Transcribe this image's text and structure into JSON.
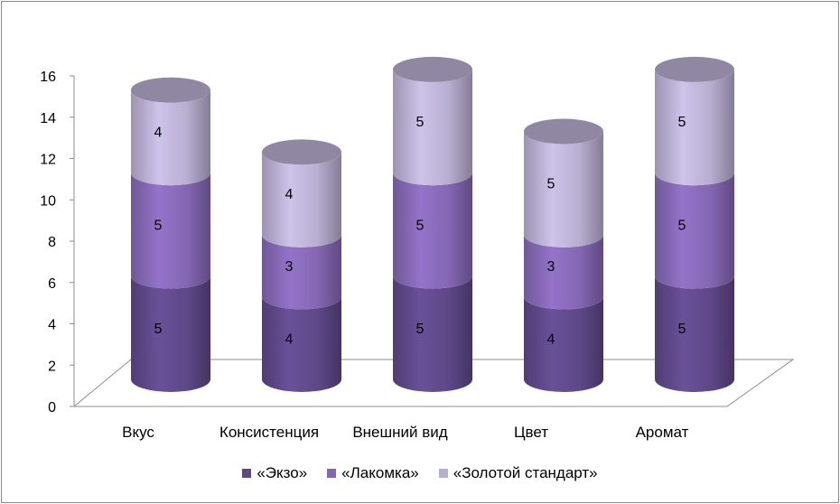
{
  "chart_data": {
    "type": "bar",
    "stacked": true,
    "style": "3d-cylinder",
    "categories": [
      "Вкус",
      "Консистенция",
      "Внешний вид",
      "Цвет",
      "Аромат"
    ],
    "series": [
      {
        "name": "«Экзо»",
        "values": [
          5,
          4,
          5,
          4,
          5
        ],
        "color": "#5e4888"
      },
      {
        "name": "«Лакомка»",
        "values": [
          5,
          3,
          5,
          3,
          5
        ],
        "color": "#8467b3"
      },
      {
        "name": "«Золотой стандарт»",
        "values": [
          4,
          4,
          5,
          5,
          5
        ],
        "color": "#b8aed0"
      }
    ],
    "ylim": [
      0,
      16
    ],
    "yticks": [
      "0",
      "2",
      "4",
      "6",
      "8",
      "10",
      "12",
      "14",
      "16"
    ],
    "legend_position": "bottom",
    "grid": false
  }
}
